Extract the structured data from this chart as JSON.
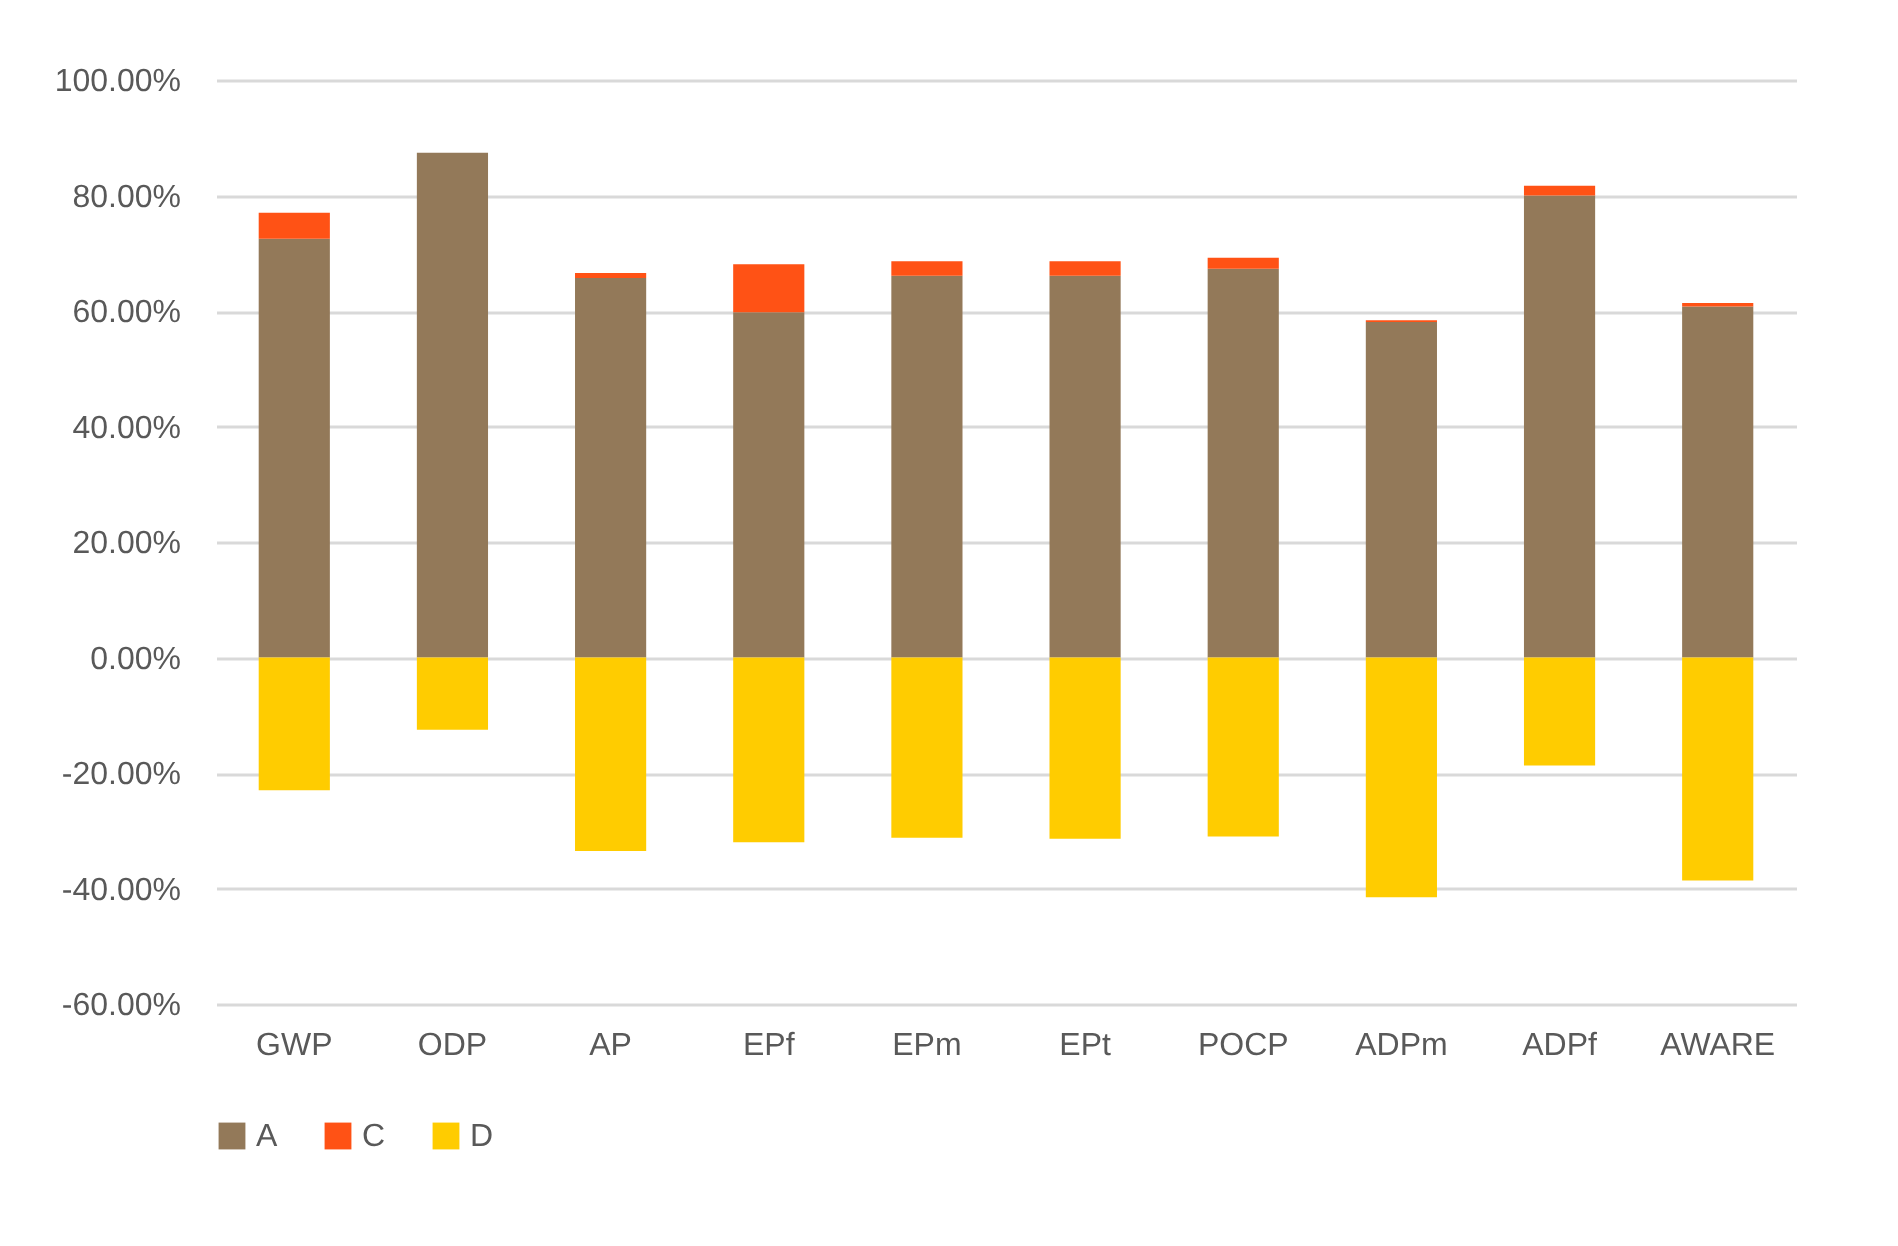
{
  "chart_data": {
    "type": "bar",
    "stacked": true,
    "categories": [
      "GWP",
      "ODP",
      "AP",
      "EPf",
      "EPm",
      "EPt",
      "POCP",
      "ADPm",
      "ADPf",
      "AWARE"
    ],
    "series": [
      {
        "name": "A",
        "color": "#937959",
        "values": [
          72.5,
          87.4,
          65.7,
          59.8,
          66.1,
          66.1,
          67.3,
          58.1,
          80.0,
          60.8
        ]
      },
      {
        "name": "C",
        "color": "#ff5215",
        "values": [
          4.5,
          null,
          0.9,
          8.3,
          2.5,
          2.5,
          1.9,
          0.3,
          1.7,
          0.6
        ]
      },
      {
        "name": "D",
        "color": "#ffcc00",
        "values": [
          -23.0,
          -12.5,
          -33.5,
          -32.0,
          -31.2,
          -31.4,
          -31.0,
          -41.5,
          -18.7,
          -38.6
        ]
      }
    ],
    "ylim": [
      -60,
      100
    ],
    "yticks": [
      {
        "value": -60,
        "label": "-60.00%"
      },
      {
        "value": -40,
        "label": "-40.00%"
      },
      {
        "value": -20,
        "label": "-20.00%"
      },
      {
        "value": 0,
        "label": "0.00%"
      },
      {
        "value": 20,
        "label": "20.00%"
      },
      {
        "value": 40,
        "label": "40.00%"
      },
      {
        "value": 60,
        "label": "60.00%"
      },
      {
        "value": 80,
        "label": "80.00%"
      },
      {
        "value": 100,
        "label": "100.00%"
      }
    ],
    "grid": "y",
    "legend": "bottom"
  }
}
